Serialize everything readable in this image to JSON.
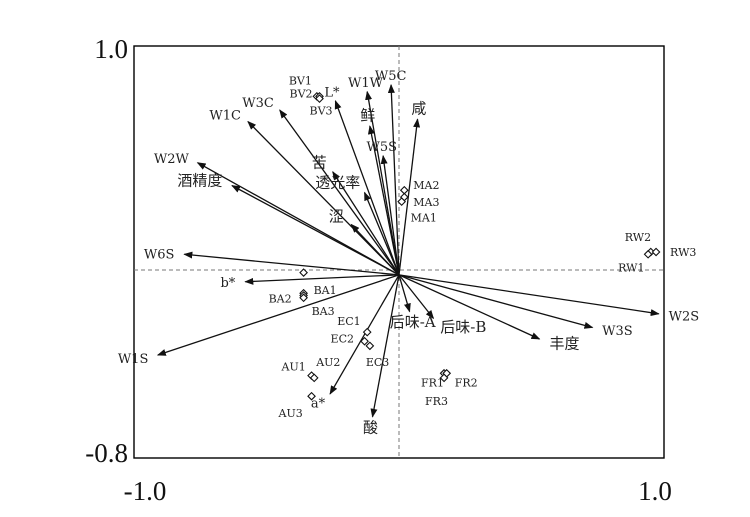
{
  "chart_data": {
    "type": "scatter",
    "xlim": [
      -1.0,
      1.0
    ],
    "ylim": [
      -0.8,
      1.0
    ],
    "tick_labels": {
      "x_left": "-1.0",
      "x_right": "1.0",
      "y_top": "1.0",
      "y_bottom": "-0.8"
    },
    "grid": false,
    "reference_lines": {
      "x": 0,
      "y": 0,
      "style": "dashed"
    },
    "loadings": [
      {
        "label": "W5C",
        "x": -0.03,
        "y": 0.83
      },
      {
        "label": "W1W",
        "x": -0.12,
        "y": 0.8
      },
      {
        "label": "咸",
        "x": 0.07,
        "y": 0.68
      },
      {
        "label": "鲜",
        "x": -0.11,
        "y": 0.65
      },
      {
        "label": "W3C",
        "x": -0.45,
        "y": 0.72
      },
      {
        "label": "W1C",
        "x": -0.57,
        "y": 0.67
      },
      {
        "label": "L*",
        "x": -0.24,
        "y": 0.76
      },
      {
        "label": "W2W",
        "x": -0.76,
        "y": 0.49
      },
      {
        "label": "酒精度",
        "x": -0.63,
        "y": 0.39
      },
      {
        "label": "W5S",
        "x": -0.06,
        "y": 0.52
      },
      {
        "label": "苦",
        "x": -0.25,
        "y": 0.45
      },
      {
        "label": "透光率",
        "x": -0.13,
        "y": 0.36
      },
      {
        "label": "涩",
        "x": -0.18,
        "y": 0.22
      },
      {
        "label": "W6S",
        "x": -0.81,
        "y": 0.09
      },
      {
        "label": "b*",
        "x": -0.58,
        "y": -0.03
      },
      {
        "label": "W1S",
        "x": -0.91,
        "y": -0.35
      },
      {
        "label": "a*",
        "x": -0.26,
        "y": -0.52
      },
      {
        "label": "酸",
        "x": -0.1,
        "y": -0.62
      },
      {
        "label": "后味-B",
        "x": 0.13,
        "y": -0.19
      },
      {
        "label": "后味-A",
        "x": 0.04,
        "y": -0.16
      },
      {
        "label": "丰度",
        "x": 0.53,
        "y": -0.28
      },
      {
        "label": "W3S",
        "x": 0.73,
        "y": -0.23
      },
      {
        "label": "W2S",
        "x": 0.98,
        "y": -0.17
      }
    ],
    "samples": [
      {
        "label": "BV1",
        "x": -0.31,
        "y": 0.78
      },
      {
        "label": "BV2",
        "x": -0.3,
        "y": 0.78
      },
      {
        "label": "BV3",
        "x": -0.3,
        "y": 0.77
      },
      {
        "label": "MA2",
        "x": 0.02,
        "y": 0.37
      },
      {
        "label": "MA3",
        "x": 0.02,
        "y": 0.34
      },
      {
        "label": "MA1",
        "x": 0.01,
        "y": 0.32
      },
      {
        "label": "RW2",
        "x": 0.95,
        "y": 0.1
      },
      {
        "label": "RW3",
        "x": 0.97,
        "y": 0.1
      },
      {
        "label": "RW1",
        "x": 0.94,
        "y": 0.09
      },
      {
        "label": "BA1",
        "x": -0.36,
        "y": -0.08
      },
      {
        "label": "BA2",
        "x": -0.36,
        "y": -0.09
      },
      {
        "label": "BA3",
        "x": -0.36,
        "y": -0.1
      },
      {
        "label": "EC1",
        "x": -0.12,
        "y": -0.25
      },
      {
        "label": "EC2",
        "x": -0.13,
        "y": -0.29
      },
      {
        "label": "EC3",
        "x": -0.11,
        "y": -0.31
      },
      {
        "label": "AU1",
        "x": -0.33,
        "y": -0.44
      },
      {
        "label": "AU2",
        "x": -0.32,
        "y": -0.45
      },
      {
        "label": "AU3",
        "x": -0.33,
        "y": -0.53
      },
      {
        "label": "FR1",
        "x": 0.17,
        "y": -0.43
      },
      {
        "label": "FR2",
        "x": 0.18,
        "y": -0.43
      },
      {
        "label": "FR3",
        "x": 0.17,
        "y": -0.45
      }
    ],
    "extra_marks": [
      {
        "x": -0.36,
        "y": 0.01
      }
    ]
  }
}
